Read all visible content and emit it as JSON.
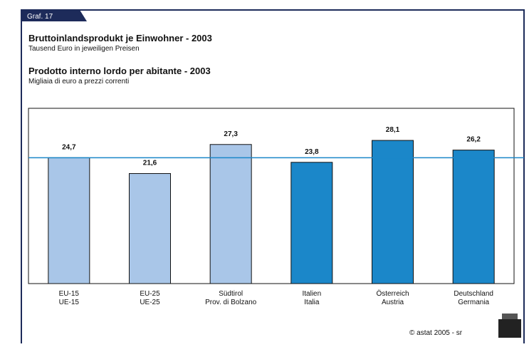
{
  "chart_data": {
    "type": "bar",
    "tab_label": "Graf. 17",
    "title": "Bruttoinlandsprodukt je Einwohner - 2003",
    "subtitle": "Tausend Euro in jeweiligen Preisen",
    "title_it": "Prodotto interno lordo per abitante - 2003",
    "subtitle_it": "Migliaia di euro a prezzi correnti",
    "categories": [
      [
        "EU-15",
        "UE-15"
      ],
      [
        "EU-25",
        "UE-25"
      ],
      [
        "Südtirol",
        "Prov. di Bolzano"
      ],
      [
        "Italien",
        "Italia"
      ],
      [
        "Österreich",
        "Austria"
      ],
      [
        "Deutschland",
        "Germania"
      ]
    ],
    "values": [
      24.7,
      21.6,
      27.3,
      23.8,
      28.1,
      26.2
    ],
    "value_labels": [
      "24,7",
      "21,6",
      "27,3",
      "23,8",
      "28,1",
      "26,2"
    ],
    "colors": [
      "#a9c6e8",
      "#a9c6e8",
      "#a9c6e8",
      "#1b87c9",
      "#1b87c9",
      "#1b87c9"
    ],
    "reference_color": "#1b87c9",
    "ylim": [
      0,
      34.4
    ],
    "source": "© astat 2005 - sr"
  }
}
